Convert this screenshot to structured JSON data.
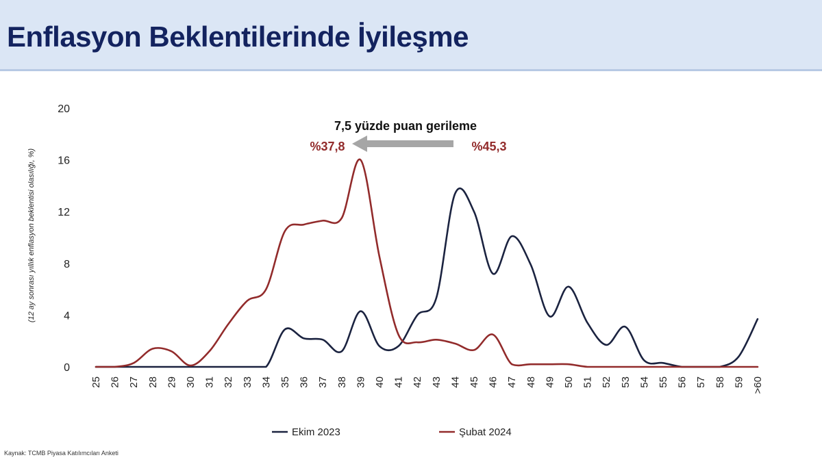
{
  "header": {
    "title": "Enflasyon Beklentilerinde İyileşme"
  },
  "source": "Kaynak: TCMB Piyasa Katılımcıları Anketi",
  "colors": {
    "ekim": "#1b2340",
    "subat": "#922b2b",
    "arrow": "#a6a6a6",
    "accent_text": "#922b2b"
  },
  "chart_data": {
    "type": "line",
    "ylabel": "(12 ay sonrası yıllık enflasyon beklentisi olasılığı, %)",
    "xlabel": "",
    "ylim": [
      0,
      20
    ],
    "yticks": [
      "0",
      "4",
      "8",
      "12",
      "16",
      "20"
    ],
    "grid": false,
    "legend_position": "bottom",
    "categories": [
      "25",
      "26",
      "27",
      "28",
      "29",
      "30",
      "31",
      "32",
      "33",
      "34",
      "35",
      "36",
      "37",
      "38",
      "39",
      "40",
      "41",
      "42",
      "43",
      "44",
      "45",
      "46",
      "47",
      "48",
      "49",
      "50",
      "51",
      "52",
      "53",
      "54",
      "55",
      "56",
      "57",
      "58",
      "59",
      ">60"
    ],
    "series": [
      {
        "name": "Ekim 2023",
        "color": "#1b2340",
        "values": [
          0,
          0,
          0,
          0,
          0,
          0,
          0,
          0,
          0,
          0,
          2.9,
          2.2,
          2.1,
          1.2,
          4.3,
          1.6,
          1.6,
          4.0,
          5.3,
          13.4,
          12.0,
          7.2,
          10.1,
          7.9,
          3.9,
          6.2,
          3.4,
          1.7,
          3.1,
          0.5,
          0.3,
          0,
          0,
          0,
          0.8,
          3.7
        ]
      },
      {
        "name": "Şubat 2024",
        "color": "#922b2b",
        "values": [
          0,
          0,
          0.3,
          1.4,
          1.2,
          0.1,
          1.2,
          3.3,
          5.1,
          6.0,
          10.5,
          11.0,
          11.3,
          11.5,
          16.0,
          8.5,
          2.5,
          1.9,
          2.1,
          1.8,
          1.3,
          2.5,
          0.2,
          0.2,
          0.2,
          0.2,
          0,
          0,
          0,
          0,
          0,
          0,
          0,
          0,
          0,
          0
        ]
      }
    ],
    "annotations": {
      "headline": "7,5 yüzde puan gerileme",
      "from_label": "%45,3",
      "to_label": "%37,8"
    }
  }
}
